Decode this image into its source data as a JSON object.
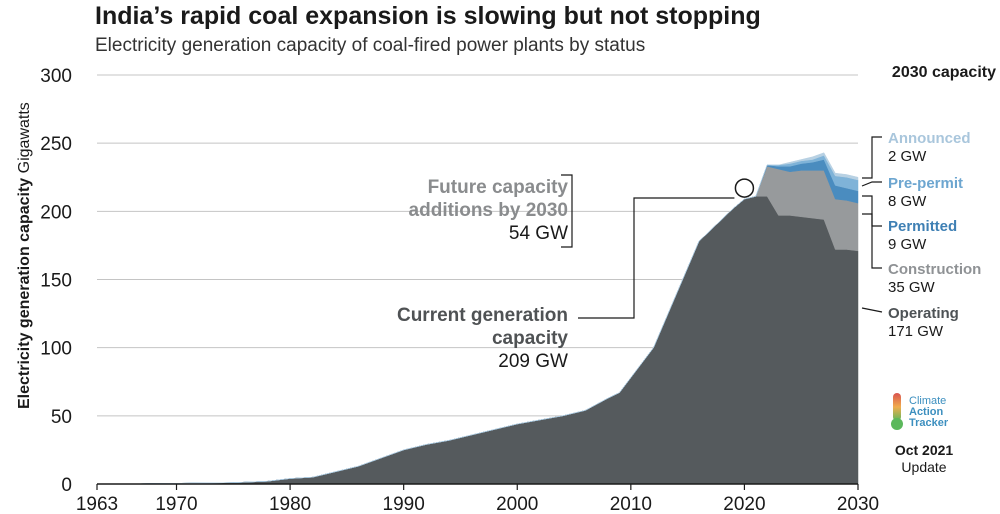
{
  "title": "India’s rapid coal expansion is slowing but not stopping",
  "subtitle": "Electricity generation capacity of coal-fired power plants by status",
  "ylabel_bold": "Electricity generation capacity",
  "ylabel_unit": "Gigawatts",
  "capacity_header": "2030 capacity",
  "annotations": {
    "future_line1": "Future capacity",
    "future_line2": "additions by 2030",
    "future_value": "54 GW",
    "current_line1": "Current generation",
    "current_line2": "capacity",
    "current_value": "209 GW"
  },
  "legend": [
    {
      "name": "Announced",
      "value": "2 GW",
      "color": "#b8d1e3"
    },
    {
      "name": "Pre-permit",
      "value": "8 GW",
      "color": "#7fb3d8"
    },
    {
      "name": "Permitted",
      "value": "9 GW",
      "color": "#4a8cbf"
    },
    {
      "name": "Construction",
      "value": "35 GW",
      "color": "#979a9c"
    },
    {
      "name": "Operating",
      "value": "171 GW",
      "color": "#555a5d"
    }
  ],
  "logo": {
    "line1": "Climate",
    "line2": "Action",
    "line3": "Tracker"
  },
  "update": {
    "date": "Oct 2021",
    "label": "Update"
  },
  "chart_data": {
    "type": "area",
    "stacked": true,
    "xlim": [
      1963,
      2030
    ],
    "ylim": [
      0,
      300
    ],
    "xticks": [
      1963,
      1970,
      1980,
      1990,
      2000,
      2010,
      2020,
      2030
    ],
    "yticks": [
      0,
      50,
      100,
      150,
      200,
      250,
      300
    ],
    "grid": true,
    "x": [
      1963,
      1965,
      1970,
      1975,
      1978,
      1980,
      1982,
      1984,
      1986,
      1988,
      1990,
      1992,
      1994,
      1996,
      1998,
      2000,
      2002,
      2004,
      2006,
      2008,
      2009,
      2010,
      2012,
      2014,
      2016,
      2018,
      2019,
      2020,
      2021,
      2022,
      2023,
      2024,
      2025,
      2026,
      2027,
      2028,
      2029,
      2030
    ],
    "series": [
      {
        "name": "Operating",
        "values": [
          0,
          0,
          0.5,
          1,
          2,
          4,
          5,
          9,
          13,
          19,
          25,
          29,
          32,
          36,
          40,
          44,
          47,
          50,
          54,
          63,
          67,
          78,
          100,
          139,
          178,
          194,
          202,
          209,
          211,
          211,
          197,
          197,
          196,
          195,
          194,
          172,
          172,
          171
        ]
      },
      {
        "name": "Construction",
        "values": [
          0,
          0,
          0,
          0,
          0,
          0,
          0,
          0,
          0,
          0,
          0,
          0,
          0,
          0,
          0,
          0,
          0,
          0,
          0,
          0,
          0,
          0,
          0,
          0,
          0,
          0,
          0,
          0,
          0,
          22,
          34,
          32,
          34,
          35,
          36,
          37,
          36,
          35
        ]
      },
      {
        "name": "Permitted",
        "values": [
          0,
          0,
          0,
          0,
          0,
          0,
          0,
          0,
          0,
          0,
          0,
          0,
          0,
          0,
          0,
          0,
          0,
          0,
          0,
          0,
          0,
          0,
          0,
          0,
          0,
          0,
          0,
          0,
          0,
          1,
          2,
          4,
          5,
          6,
          8,
          10,
          9,
          9
        ]
      },
      {
        "name": "Pre-permit",
        "values": [
          0,
          0,
          0,
          0,
          0,
          0,
          0,
          0,
          0,
          0,
          0,
          0,
          0,
          0,
          0,
          0,
          0,
          0,
          0,
          0,
          0,
          0,
          0,
          0,
          0,
          0,
          0,
          0,
          0,
          0,
          1,
          2,
          2,
          2,
          3,
          7,
          8,
          8
        ]
      },
      {
        "name": "Announced",
        "values": [
          0,
          0,
          0,
          0,
          0,
          0,
          0,
          0,
          0,
          0,
          0,
          0,
          0,
          0,
          0,
          0,
          0,
          0,
          0,
          0,
          0,
          0,
          0,
          0,
          0,
          0,
          0,
          0,
          0,
          0,
          0,
          1,
          1,
          2,
          2,
          2,
          2,
          2
        ]
      }
    ],
    "highlight_point": {
      "x": 2020,
      "y": 209
    }
  }
}
